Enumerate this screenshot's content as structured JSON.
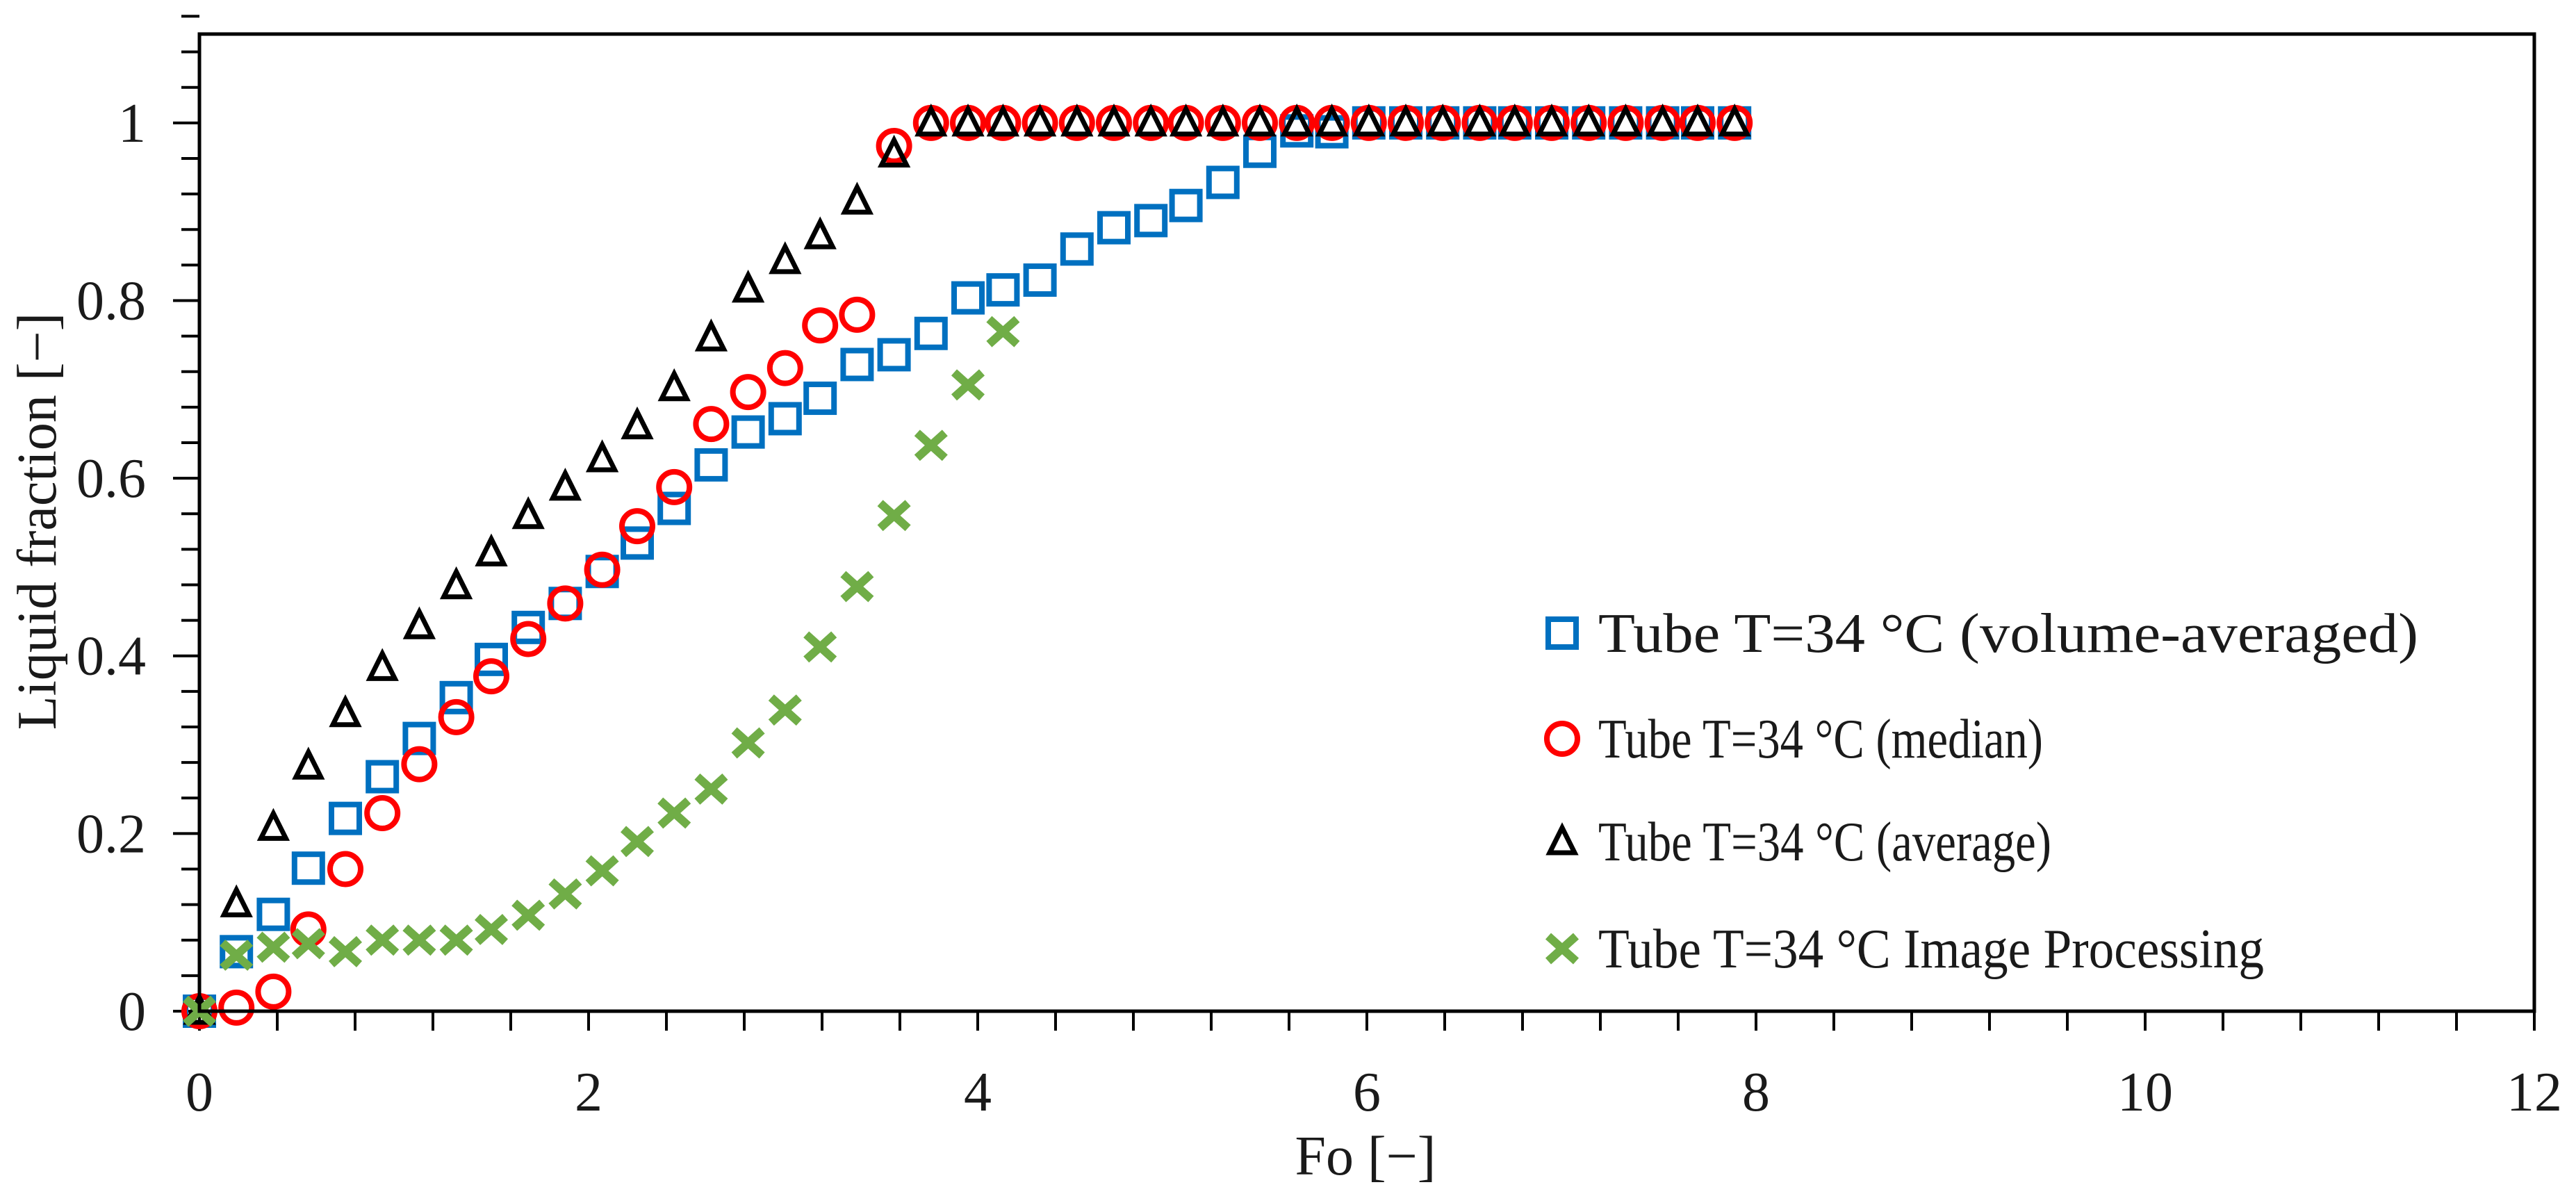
{
  "chart_data": {
    "type": "scatter",
    "title": "",
    "xlabel": "Fo [−]",
    "ylabel": "Liquid fraction [−]",
    "xlim": [
      0,
      12
    ],
    "ylim": [
      0,
      1.1
    ],
    "x_ticks": [
      0,
      2,
      4,
      6,
      8,
      10,
      12
    ],
    "x_tick_labels": [
      "0",
      "2",
      "4",
      "6",
      "8",
      "10",
      "12"
    ],
    "x_minor_step": 0.4,
    "y_ticks": [
      0,
      0.2,
      0.4,
      0.6,
      0.8,
      1
    ],
    "y_tick_labels": [
      "0",
      "0.2",
      "0.4",
      "0.6",
      "0.8",
      "1"
    ],
    "y_minor_step": 0.04,
    "grid": false,
    "legend_position": "bottom-right",
    "x": [
      0,
      0.19,
      0.38,
      0.56,
      0.75,
      0.94,
      1.13,
      1.32,
      1.5,
      1.69,
      1.88,
      2.07,
      2.25,
      2.44,
      2.63,
      2.82,
      3.01,
      3.19,
      3.38,
      3.57,
      3.76,
      3.95,
      4.13,
      4.32,
      4.51,
      4.7,
      4.89,
      5.07,
      5.26,
      5.45,
      5.64,
      5.82,
      6.01,
      6.2,
      6.39,
      6.58,
      6.76,
      6.95,
      7.14,
      7.33,
      7.52,
      7.7,
      7.89
    ],
    "series": [
      {
        "name": "Tube T=34 °C (volume-averaged)",
        "marker": "square",
        "color": "#0070C0",
        "values": [
          0,
          0.067,
          0.109,
          0.161,
          0.217,
          0.264,
          0.307,
          0.353,
          0.396,
          0.432,
          0.459,
          0.495,
          0.527,
          0.566,
          0.615,
          0.652,
          0.667,
          0.69,
          0.728,
          0.739,
          0.763,
          0.803,
          0.812,
          0.823,
          0.858,
          0.882,
          0.89,
          0.907,
          0.933,
          0.968,
          0.991,
          0.99,
          1,
          1,
          1,
          1,
          1,
          1,
          1,
          1,
          1,
          1,
          1
        ]
      },
      {
        "name": "Tube T=34 °C (median)",
        "marker": "circle",
        "color": "#FF0000",
        "values": [
          0,
          0.004,
          0.022,
          0.092,
          0.16,
          0.223,
          0.278,
          0.331,
          0.377,
          0.419,
          0.459,
          0.497,
          0.546,
          0.59,
          0.661,
          0.697,
          0.724,
          0.772,
          0.784,
          0.974,
          1,
          1,
          1,
          1,
          1,
          1,
          1,
          1,
          1,
          1,
          1,
          1,
          1,
          1,
          1,
          1,
          1,
          1,
          1,
          1,
          1,
          1,
          1
        ]
      },
      {
        "name": "Tube T=34 °C (average)",
        "marker": "triangle",
        "color": "#000000",
        "values": [
          0,
          0.121,
          0.207,
          0.276,
          0.335,
          0.387,
          0.434,
          0.479,
          0.516,
          0.558,
          0.59,
          0.622,
          0.659,
          0.702,
          0.758,
          0.813,
          0.845,
          0.873,
          0.912,
          0.965,
          1,
          1,
          1,
          1,
          1,
          1,
          1,
          1,
          1,
          1,
          1,
          1,
          1,
          1,
          1,
          1,
          1,
          1,
          1,
          1,
          1,
          1,
          1
        ]
      },
      {
        "name": "Tube T=34 °C Image Processing",
        "marker": "x",
        "color": "#70AD47",
        "values": [
          0,
          0.063,
          0.072,
          0.076,
          0.067,
          0.08,
          0.08,
          0.08,
          0.092,
          0.108,
          0.132,
          0.158,
          0.191,
          0.223,
          0.25,
          0.302,
          0.339,
          0.41,
          0.478,
          0.558,
          0.637,
          0.705,
          0.765
        ]
      }
    ]
  }
}
